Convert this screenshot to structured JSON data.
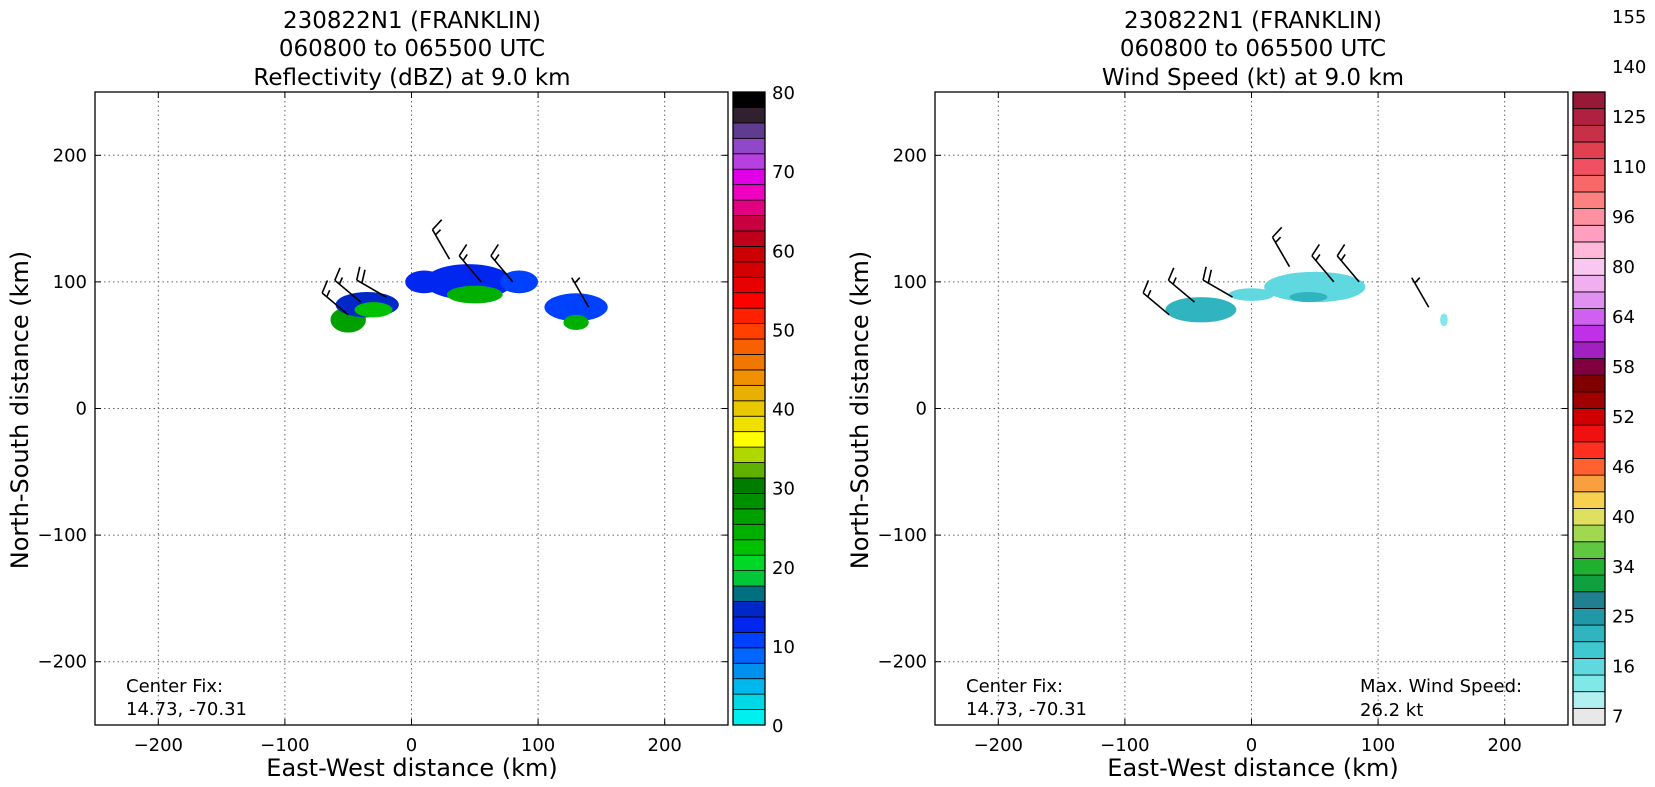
{
  "chart_data": [
    {
      "type": "heatmap",
      "title_lines": [
        "230822N1 (FRANKLIN)",
        "060800 to 065500 UTC",
        "Reflectivity (dBZ) at 9.0 km"
      ],
      "xlabel": "East-West distance (km)",
      "ylabel": "North-South distance (km)",
      "xlim": [
        -250,
        250
      ],
      "ylim": [
        -250,
        250
      ],
      "xticks": [
        -200,
        -100,
        0,
        100,
        200
      ],
      "yticks": [
        -200,
        -100,
        0,
        100,
        200
      ],
      "grid": true,
      "annotations": [
        "Center Fix:",
        "14.73, -70.31"
      ],
      "colorbar": {
        "range": [
          0,
          80
        ],
        "ticks": [
          "0",
          "10",
          "20",
          "30",
          "40",
          "50",
          "60",
          "70",
          "80"
        ],
        "colors": [
          "#00f0f0",
          "#00d8e6",
          "#00b8ee",
          "#0090ee",
          "#0066ff",
          "#0040ff",
          "#0026f0",
          "#0028c8",
          "#007080",
          "#00c838",
          "#00d828",
          "#00c000",
          "#00b000",
          "#00a000",
          "#009000",
          "#007c00",
          "#60b000",
          "#b0d800",
          "#ffff00",
          "#f0e000",
          "#e8c800",
          "#e8b000",
          "#f09000",
          "#f07800",
          "#f86000",
          "#ff4000",
          "#ff2000",
          "#ff0000",
          "#e80000",
          "#d40000",
          "#cc0000",
          "#c00018",
          "#c80040",
          "#e00080",
          "#f000c0",
          "#e000e8",
          "#b840e0",
          "#9048c8",
          "#603c90",
          "#302030",
          "#000000"
        ]
      },
      "blobs": [
        {
          "x": -50,
          "y": 70,
          "rx": 14,
          "ry": 10,
          "dbz": 27
        },
        {
          "x": -35,
          "y": 82,
          "rx": 25,
          "ry": 10,
          "dbz": 14
        },
        {
          "x": -30,
          "y": 78,
          "rx": 15,
          "ry": 6,
          "dbz": 22
        },
        {
          "x": 10,
          "y": 100,
          "rx": 15,
          "ry": 9,
          "dbz": 13
        },
        {
          "x": 45,
          "y": 100,
          "rx": 35,
          "ry": 14,
          "dbz": 12
        },
        {
          "x": 50,
          "y": 90,
          "rx": 22,
          "ry": 7,
          "dbz": 24
        },
        {
          "x": 85,
          "y": 100,
          "rx": 15,
          "ry": 9,
          "dbz": 11
        },
        {
          "x": 130,
          "y": 80,
          "rx": 25,
          "ry": 11,
          "dbz": 11
        },
        {
          "x": 130,
          "y": 68,
          "rx": 10,
          "ry": 6,
          "dbz": 24
        }
      ],
      "barbs": [
        {
          "x": -50,
          "y": 74,
          "dir": 310,
          "kt": 15
        },
        {
          "x": -40,
          "y": 84,
          "dir": 310,
          "kt": 15
        },
        {
          "x": -20,
          "y": 88,
          "dir": 300,
          "kt": 20
        },
        {
          "x": 30,
          "y": 118,
          "dir": 330,
          "kt": 15
        },
        {
          "x": 55,
          "y": 100,
          "dir": 320,
          "kt": 15
        },
        {
          "x": 80,
          "y": 100,
          "dir": 320,
          "kt": 15
        },
        {
          "x": 140,
          "y": 80,
          "dir": 330,
          "kt": 5
        }
      ]
    },
    {
      "type": "heatmap",
      "title_lines": [
        "230822N1 (FRANKLIN)",
        "060800 to 065500 UTC",
        "Wind Speed (kt) at 9.0 km"
      ],
      "xlabel": "East-West distance (km)",
      "ylabel": "North-South distance (km)",
      "xlim": [
        -250,
        250
      ],
      "ylim": [
        -250,
        250
      ],
      "xticks": [
        -200,
        -100,
        0,
        100,
        200
      ],
      "yticks": [
        -200,
        -100,
        0,
        100,
        200
      ],
      "grid": true,
      "annotations": [
        "Center Fix:",
        "14.73, -70.31"
      ],
      "max_wind_label": "Max. Wind Speed:",
      "max_wind_value": "26.2 kt",
      "colorbar": {
        "ticks": [
          "7",
          "16",
          "25",
          "34",
          "40",
          "46",
          "52",
          "58",
          "64",
          "80",
          "96",
          "110",
          "125",
          "140",
          "155"
        ],
        "colors": [
          "#e8e8e8",
          "#b0f0f0",
          "#80e8e8",
          "#60d8e0",
          "#40c8d0",
          "#30b4c0",
          "#2098a8",
          "#208090",
          "#10a040",
          "#20b030",
          "#60c840",
          "#a0d850",
          "#e0e060",
          "#f8d050",
          "#f8a040",
          "#ff6030",
          "#ff3020",
          "#f01010",
          "#d00000",
          "#a00000",
          "#800000",
          "#800040",
          "#a020c0",
          "#c030e8",
          "#d060f0",
          "#e090f0",
          "#f0b0f0",
          "#f8c8f0",
          "#ffb8d8",
          "#ffa0c0",
          "#ff90a0",
          "#ff8080",
          "#f86868",
          "#f05060",
          "#e04050",
          "#c83048",
          "#b02040",
          "#981838"
        ]
      },
      "blobs": [
        {
          "x": -40,
          "y": 78,
          "rx": 28,
          "ry": 10,
          "kt": 22
        },
        {
          "x": 0,
          "y": 90,
          "rx": 18,
          "ry": 5,
          "kt": 18
        },
        {
          "x": 50,
          "y": 96,
          "rx": 40,
          "ry": 12,
          "kt": 16
        },
        {
          "x": 45,
          "y": 88,
          "rx": 15,
          "ry": 4,
          "kt": 22
        },
        {
          "x": 152,
          "y": 70,
          "rx": 3,
          "ry": 5,
          "kt": 14
        }
      ],
      "barbs": [
        {
          "x": -65,
          "y": 74,
          "dir": 310,
          "kt": 15
        },
        {
          "x": -45,
          "y": 84,
          "dir": 310,
          "kt": 15
        },
        {
          "x": -15,
          "y": 88,
          "dir": 300,
          "kt": 20
        },
        {
          "x": 30,
          "y": 112,
          "dir": 330,
          "kt": 15
        },
        {
          "x": 65,
          "y": 100,
          "dir": 320,
          "kt": 15
        },
        {
          "x": 85,
          "y": 100,
          "dir": 320,
          "kt": 15
        },
        {
          "x": 140,
          "y": 80,
          "dir": 330,
          "kt": 5
        }
      ]
    }
  ]
}
